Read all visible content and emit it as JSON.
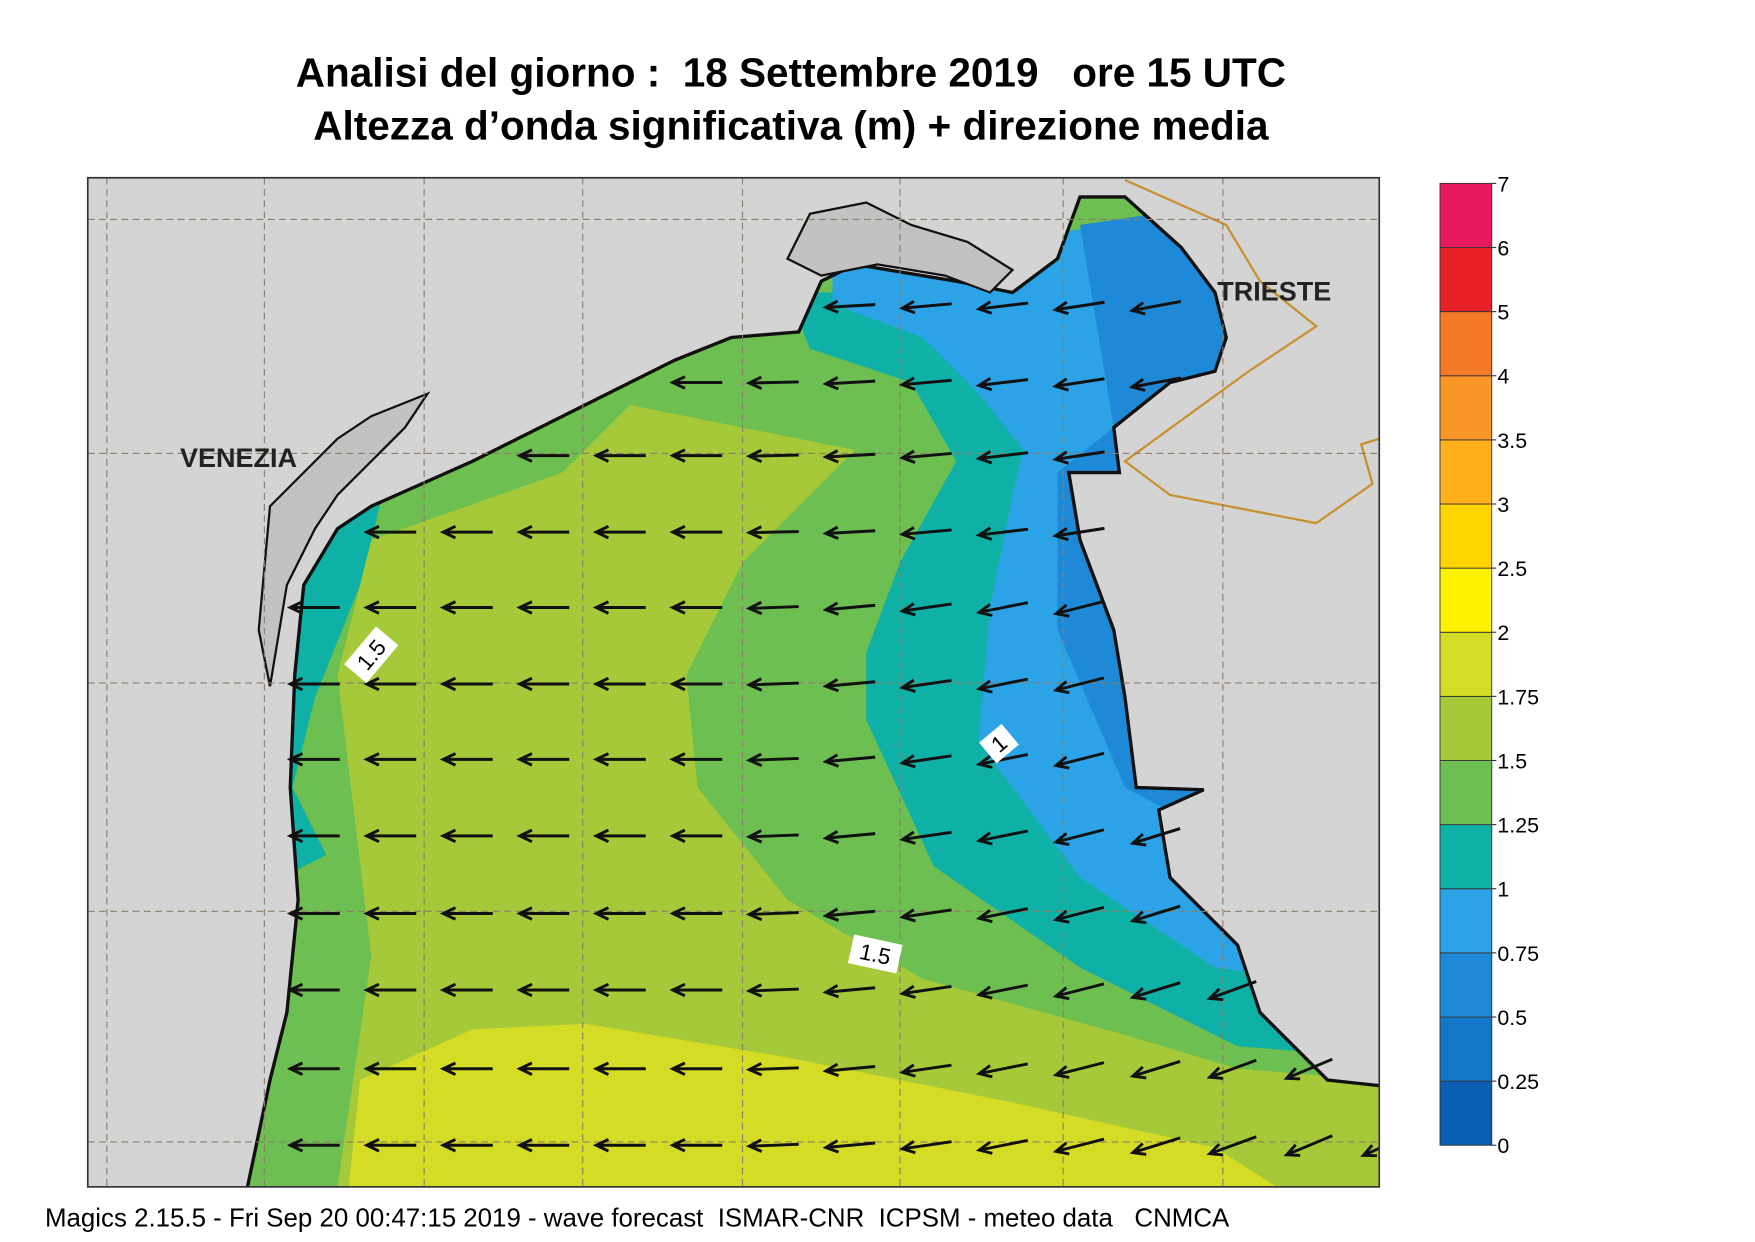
{
  "title": "Analisi del giorno :  18 Settembre 2019   ore 15 UTC",
  "subtitle": "Altezza d’onda significativa (m) + direzione media",
  "places": [
    "VENEZIA",
    "TRIESTE"
  ],
  "contour_labels": [
    1.5,
    1,
    1.5
  ],
  "legend": {
    "levels": [
      0,
      0.25,
      0.5,
      0.75,
      1,
      1.25,
      1.5,
      1.75,
      2,
      2.5,
      3,
      3.5,
      4,
      5,
      6,
      7
    ],
    "colors": [
      "#0a5fb4",
      "#1476c8",
      "#1e8ad7",
      "#2ba3e6",
      "#0fb0a5",
      "#6cbf50",
      "#a6c93a",
      "#d5dc25",
      "#fff200",
      "#ffd400",
      "#ffaf1a",
      "#fa9628",
      "#f47a28",
      "#e82027",
      "#e8185c"
    ]
  },
  "footer": "Magics 2.15.5 - Fri Sep 20 00:47:15 2019 - wave forecast  ISMAR-CNR  ICPSM - meteo data   CNMCA"
}
